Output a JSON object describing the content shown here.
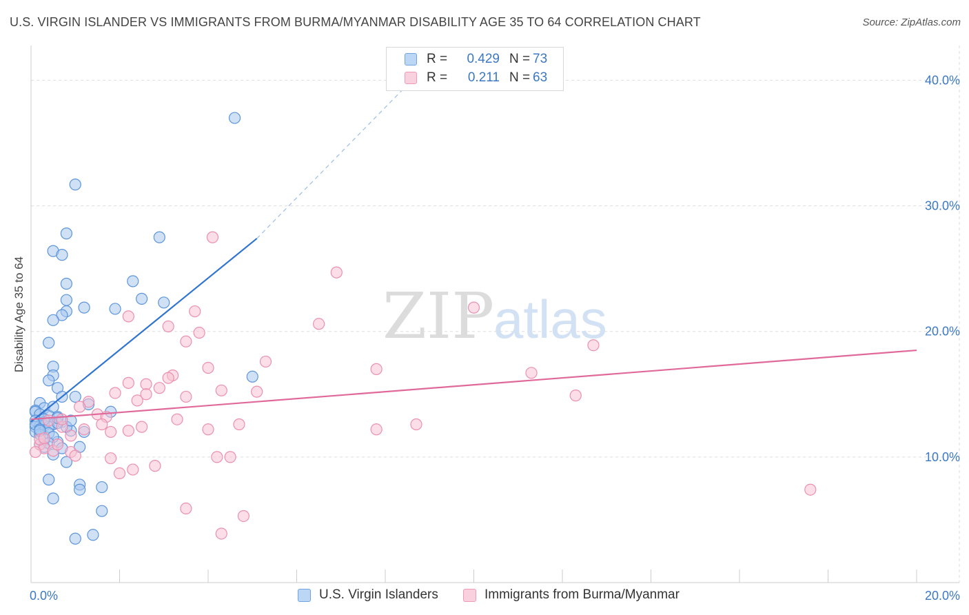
{
  "title": "U.S. VIRGIN ISLANDER VS IMMIGRANTS FROM BURMA/MYANMAR DISABILITY AGE 35 TO 64 CORRELATION CHART",
  "source": "Source: ZipAtlas.com",
  "watermark": {
    "zip": "ZIP",
    "atlas": "atlas"
  },
  "legend": {
    "rows": [
      {
        "r_label": "R =",
        "r_value": "0.429",
        "n_label": "N =",
        "n_value": "73",
        "color": "#6fa4e3"
      },
      {
        "r_label": "R =",
        "r_value": "0.211",
        "n_label": "N =",
        "n_value": "63",
        "color": "#f09ab5"
      }
    ]
  },
  "bottom_legend": [
    {
      "label": "U.S. Virgin Islanders",
      "color": "#6fa4e3"
    },
    {
      "label": "Immigrants from Burma/Myanmar",
      "color": "#f09ab5"
    }
  ],
  "colors": {
    "blue_fill": "#aac9ef",
    "blue_stroke": "#5b95dc",
    "blue_line": "#2f74d0",
    "pink_fill": "#f7c3d3",
    "pink_stroke": "#ec8fb0",
    "pink_line": "#e0699a",
    "grid": "#dddddd",
    "tick_text": "#3b78c3"
  },
  "chart_data": {
    "type": "scatter",
    "xlabel": "",
    "ylabel": "Disability Age 35 to 64",
    "xlim": [
      0,
      20
    ],
    "ylim": [
      0,
      42
    ],
    "x_ticks": [
      "0.0%",
      "20.0%"
    ],
    "y_ticks": [
      {
        "value": 10,
        "label": "10.0%"
      },
      {
        "value": 20,
        "label": "20.0%"
      },
      {
        "value": 30,
        "label": "30.0%"
      },
      {
        "value": 40,
        "label": "40.0%"
      }
    ],
    "grid": true,
    "series": [
      {
        "name": "U.S. Virgin Islanders",
        "points": [
          [
            4.6,
            37.0
          ],
          [
            1.0,
            31.7
          ],
          [
            0.8,
            27.8
          ],
          [
            2.9,
            27.5
          ],
          [
            0.5,
            26.4
          ],
          [
            0.7,
            26.1
          ],
          [
            0.8,
            23.8
          ],
          [
            2.3,
            24.0
          ],
          [
            0.8,
            22.5
          ],
          [
            2.5,
            22.6
          ],
          [
            1.2,
            21.9
          ],
          [
            1.9,
            21.8
          ],
          [
            3.0,
            22.3
          ],
          [
            0.8,
            21.6
          ],
          [
            0.7,
            21.3
          ],
          [
            0.5,
            20.9
          ],
          [
            0.4,
            19.1
          ],
          [
            0.5,
            17.2
          ],
          [
            0.5,
            16.5
          ],
          [
            0.4,
            16.1
          ],
          [
            0.6,
            15.5
          ],
          [
            0.7,
            14.8
          ],
          [
            1.0,
            14.8
          ],
          [
            1.3,
            14.2
          ],
          [
            5.0,
            16.4
          ],
          [
            0.2,
            14.3
          ],
          [
            0.3,
            13.9
          ],
          [
            0.1,
            13.7
          ],
          [
            0.1,
            13.6
          ],
          [
            0.2,
            13.4
          ],
          [
            0.4,
            13.3
          ],
          [
            0.6,
            13.2
          ],
          [
            0.7,
            12.8
          ],
          [
            0.1,
            12.9
          ],
          [
            0.3,
            12.8
          ],
          [
            0.5,
            12.6
          ],
          [
            0.2,
            12.5
          ],
          [
            0.1,
            12.4
          ],
          [
            0.3,
            12.5
          ],
          [
            0.4,
            12.4
          ],
          [
            0.9,
            12.1
          ],
          [
            1.2,
            12.0
          ],
          [
            1.8,
            13.6
          ],
          [
            0.1,
            12.0
          ],
          [
            0.4,
            11.9
          ],
          [
            0.2,
            11.8
          ],
          [
            0.3,
            11.4
          ],
          [
            0.6,
            11.2
          ],
          [
            0.2,
            11.0
          ],
          [
            0.3,
            10.8
          ],
          [
            0.7,
            10.7
          ],
          [
            1.1,
            10.8
          ],
          [
            0.5,
            10.2
          ],
          [
            0.8,
            9.6
          ],
          [
            0.4,
            8.2
          ],
          [
            1.1,
            7.8
          ],
          [
            1.6,
            7.6
          ],
          [
            1.1,
            7.4
          ],
          [
            0.5,
            6.7
          ],
          [
            1.6,
            5.7
          ],
          [
            1.4,
            3.8
          ],
          [
            1.0,
            3.5
          ],
          [
            0.1,
            12.6
          ],
          [
            0.2,
            12.2
          ],
          [
            0.5,
            11.6
          ],
          [
            0.8,
            12.4
          ],
          [
            0.3,
            13.0
          ],
          [
            0.6,
            12.7
          ],
          [
            0.9,
            12.9
          ],
          [
            0.2,
            12.1
          ],
          [
            0.4,
            11.1
          ],
          [
            0.6,
            13.1
          ],
          [
            0.5,
            14.0
          ]
        ],
        "trend": {
          "x": [
            0.0,
            5.1
          ],
          "y": [
            12.8,
            27.4
          ],
          "dashed_to": [
            8.6,
            40.0
          ]
        }
      },
      {
        "name": "Immigrants from Burma/Myanmar",
        "points": [
          [
            4.1,
            27.5
          ],
          [
            6.9,
            24.7
          ],
          [
            10.0,
            21.9
          ],
          [
            2.2,
            21.2
          ],
          [
            3.7,
            21.6
          ],
          [
            3.1,
            20.4
          ],
          [
            6.5,
            20.6
          ],
          [
            3.8,
            19.9
          ],
          [
            3.5,
            19.2
          ],
          [
            12.7,
            18.9
          ],
          [
            5.3,
            17.6
          ],
          [
            4.0,
            17.1
          ],
          [
            7.8,
            17.0
          ],
          [
            11.3,
            16.7
          ],
          [
            3.2,
            16.5
          ],
          [
            3.1,
            16.3
          ],
          [
            2.2,
            15.9
          ],
          [
            2.6,
            15.8
          ],
          [
            2.9,
            15.5
          ],
          [
            4.3,
            15.3
          ],
          [
            5.1,
            15.2
          ],
          [
            1.9,
            15.1
          ],
          [
            2.6,
            15.0
          ],
          [
            3.5,
            14.8
          ],
          [
            12.3,
            14.9
          ],
          [
            2.4,
            14.5
          ],
          [
            1.3,
            14.4
          ],
          [
            1.1,
            14.0
          ],
          [
            1.5,
            13.4
          ],
          [
            1.7,
            13.2
          ],
          [
            3.3,
            13.0
          ],
          [
            1.6,
            12.6
          ],
          [
            4.7,
            12.6
          ],
          [
            8.7,
            12.6
          ],
          [
            7.8,
            12.2
          ],
          [
            4.0,
            12.2
          ],
          [
            2.5,
            12.4
          ],
          [
            2.2,
            12.1
          ],
          [
            1.2,
            12.2
          ],
          [
            1.8,
            12.0
          ],
          [
            0.7,
            12.4
          ],
          [
            0.9,
            11.7
          ],
          [
            0.2,
            11.0
          ],
          [
            0.3,
            10.7
          ],
          [
            0.5,
            10.5
          ],
          [
            0.9,
            10.4
          ],
          [
            0.1,
            10.4
          ],
          [
            0.2,
            11.4
          ],
          [
            0.4,
            12.9
          ],
          [
            0.7,
            13.0
          ],
          [
            1.0,
            10.1
          ],
          [
            2.3,
            9.0
          ],
          [
            2.0,
            8.7
          ],
          [
            1.8,
            9.9
          ],
          [
            4.2,
            10.0
          ],
          [
            4.5,
            10.0
          ],
          [
            2.8,
            9.3
          ],
          [
            17.6,
            7.4
          ],
          [
            3.5,
            5.9
          ],
          [
            4.8,
            5.3
          ],
          [
            4.3,
            3.9
          ],
          [
            0.3,
            11.5
          ],
          [
            0.6,
            11.0
          ]
        ],
        "trend": {
          "x": [
            0.0,
            20.0
          ],
          "y": [
            13.0,
            18.5
          ]
        }
      }
    ]
  }
}
